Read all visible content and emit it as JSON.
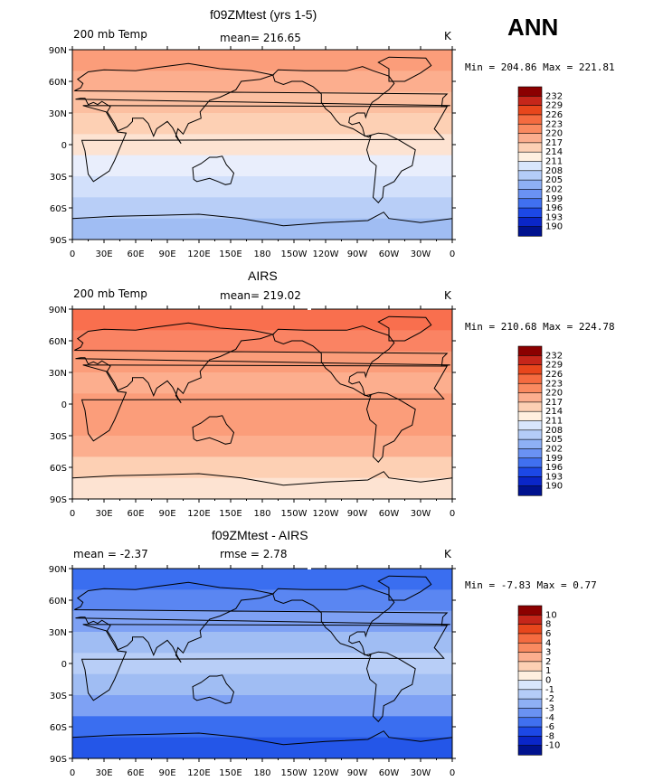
{
  "season": "ANN",
  "chart_data": [
    {
      "type": "heatmap",
      "title": "f09ZMtest (yrs 1-5)",
      "left_label": "200 mb Temp",
      "center_label": "mean= 216.65",
      "units": "K",
      "stats": "Min = 204.86 Max = 221.81",
      "levels": [
        "232",
        "229",
        "226",
        "223",
        "220",
        "217",
        "214",
        "211",
        "208",
        "205",
        "202",
        "199",
        "196",
        "193",
        "190"
      ],
      "band_colors": [
        "#fb9d7a",
        "#fcae8e",
        "#fcbfa0",
        "#fdd0b4",
        "#fde3d2",
        "#e9eefc",
        "#d2e0fb",
        "#b8cef7",
        "#a0bdf3"
      ],
      "x_ticks": [
        "0",
        "30E",
        "60E",
        "90E",
        "120E",
        "150E",
        "180",
        "150W",
        "120W",
        "90W",
        "60W",
        "30W",
        "0"
      ],
      "y_ticks": [
        "90N",
        "60N",
        "30N",
        "0",
        "30S",
        "60S",
        "90S"
      ]
    },
    {
      "type": "heatmap",
      "title": "AIRS",
      "left_label": "200 mb Temp",
      "center_label": "mean= 219.02",
      "units": "K",
      "stats": "Min = 210.68 Max = 224.78",
      "levels": [
        "232",
        "229",
        "226",
        "223",
        "220",
        "217",
        "214",
        "211",
        "208",
        "205",
        "202",
        "199",
        "196",
        "193",
        "190"
      ],
      "band_colors": [
        "#f96f4e",
        "#fa8363",
        "#fb9d7a",
        "#fcae8e",
        "#fb9d7a",
        "#fb9d7a",
        "#fcae8e",
        "#fdd0b4",
        "#fde3d2"
      ],
      "x_ticks": [
        "0",
        "30E",
        "60E",
        "90E",
        "120E",
        "150E",
        "180",
        "150W",
        "120W",
        "90W",
        "60W",
        "30W",
        "0"
      ],
      "y_ticks": [
        "90N",
        "60N",
        "30N",
        "0",
        "30S",
        "60S",
        "90S"
      ]
    },
    {
      "type": "heatmap",
      "title": "f09ZMtest - AIRS",
      "left_label": "mean =  -2.37",
      "center_label": "rmse =   2.78",
      "units": "K",
      "stats": "Min =  -7.83 Max =   0.77",
      "levels": [
        "10",
        "8",
        "6",
        "4",
        "3",
        "2",
        "1",
        "0",
        "-1",
        "-2",
        "-3",
        "-4",
        "-6",
        "-8",
        "-10"
      ],
      "band_colors": [
        "#3a6ef0",
        "#5a86f2",
        "#7ea1f4",
        "#a0bdf3",
        "#b8cef7",
        "#a0bdf3",
        "#7ea1f4",
        "#3a6ef0",
        "#2456e8"
      ],
      "x_ticks": [
        "0",
        "30E",
        "60E",
        "90E",
        "120E",
        "150E",
        "180",
        "150W",
        "120W",
        "90W",
        "60W",
        "30W",
        "0"
      ],
      "y_ticks": [
        "90N",
        "60N",
        "30N",
        "0",
        "30S",
        "60S",
        "90S"
      ]
    }
  ],
  "colorbar_colors": [
    "#8b0000",
    "#c6261a",
    "#e8461c",
    "#f56b40",
    "#fa8a60",
    "#fcae8e",
    "#fdd0b4",
    "#fff0e0",
    "#d8e6fc",
    "#b4ccf8",
    "#8eb0f5",
    "#6a92f3",
    "#4070f0",
    "#1c48e6",
    "#0a26c8",
    "#00128e"
  ],
  "pole_dot_color": "#ffffff",
  "coastline_color": "#000000"
}
